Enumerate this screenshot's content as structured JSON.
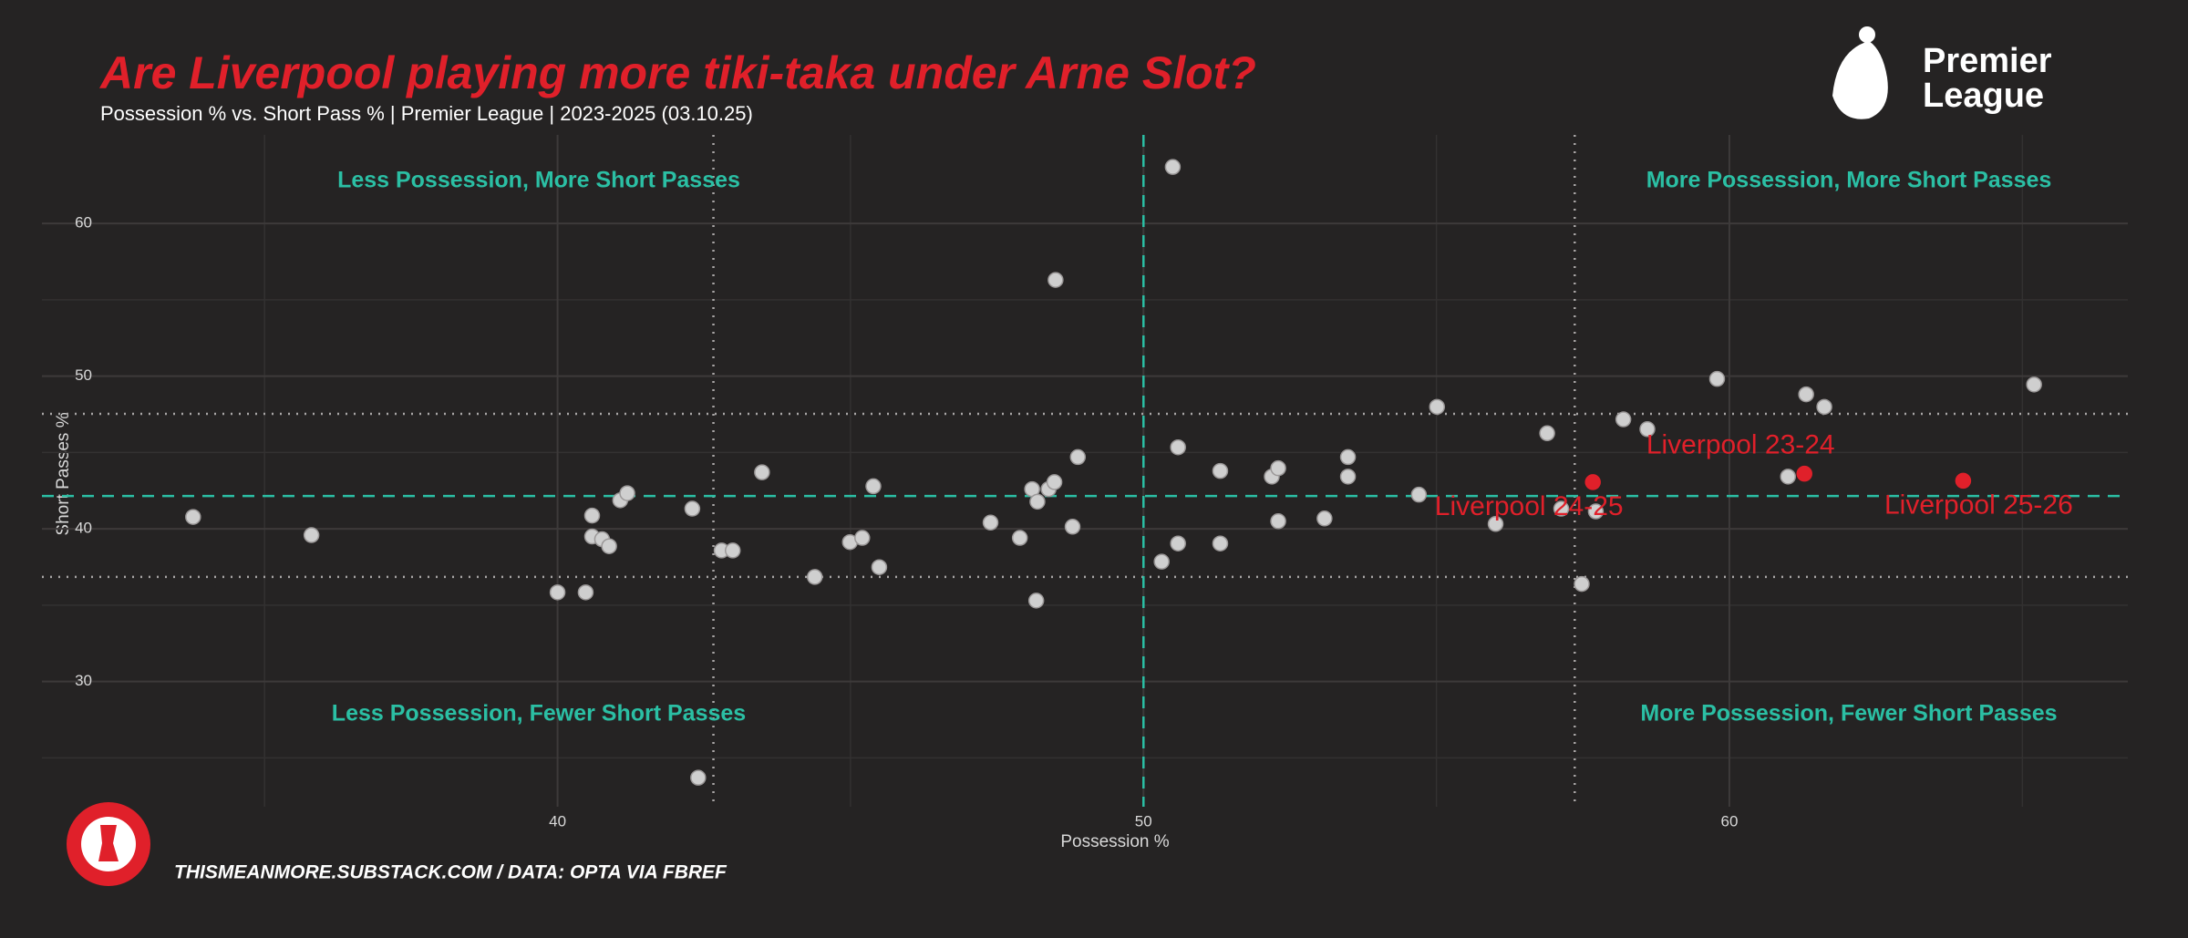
{
  "chart_data": {
    "type": "scatter",
    "title": "Are Liverpool playing more tiki-taka under Arne Slot?",
    "subtitle": "Possession % vs. Short Pass % | Premier League | 2023-2025 (03.10.25)",
    "x_label": "Possession %",
    "y_label": "Short Passes %",
    "xlim": [
      31.2,
      66.8
    ],
    "ylim": [
      21.8,
      65.8
    ],
    "xticks": [
      40,
      50,
      60
    ],
    "yticks": [
      30,
      40,
      50,
      60
    ],
    "x_minor_grid": [
      35,
      45,
      55,
      65
    ],
    "y_minor_grid": [
      25,
      35,
      45,
      55
    ],
    "grid": true,
    "quadrant_labels": [
      "Less Possession, More Short Passes",
      "More Possession, More Short Passes",
      "Less Possession, Fewer Short Passes",
      "More Possession, Fewer Short Passes"
    ],
    "median_x": 50,
    "median_y": 42.15,
    "dotted_x": [
      42.66,
      57.36
    ],
    "dotted_y": [
      47.53,
      36.85
    ],
    "series": [
      {
        "color": "#cfcfcf",
        "x": [
          33.78,
          35.8,
          40.0,
          40.48,
          40.59,
          40.59,
          40.76,
          40.88,
          41.07,
          41.19,
          42.3,
          42.4,
          42.8,
          42.99,
          43.49,
          44.39,
          44.99,
          45.2,
          45.39,
          45.49,
          47.39,
          47.89,
          48.1,
          48.19,
          48.17,
          48.38,
          48.48,
          48.5,
          48.79,
          48.88,
          50.31,
          50.5,
          50.59,
          50.59,
          51.31,
          51.31,
          52.19,
          52.3,
          52.3,
          53.09,
          53.49,
          53.49,
          54.7,
          55.01,
          56.01,
          56.89,
          57.13,
          57.48,
          57.72,
          58.19,
          58.6,
          59.79,
          61.0,
          61.31,
          61.62,
          65.2
        ],
        "values": [
          40.78,
          39.59,
          35.84,
          35.84,
          40.87,
          39.5,
          39.32,
          38.86,
          41.87,
          42.33,
          41.32,
          23.7,
          38.58,
          38.58,
          43.7,
          36.85,
          39.13,
          39.41,
          42.79,
          37.49,
          40.41,
          39.41,
          42.6,
          41.78,
          35.3,
          42.6,
          43.06,
          56.3,
          40.14,
          44.7,
          37.85,
          63.7,
          45.34,
          39.04,
          43.79,
          39.04,
          43.42,
          43.97,
          40.5,
          40.68,
          44.7,
          43.42,
          42.24,
          47.99,
          40.32,
          46.26,
          41.32,
          36.39,
          41.14,
          47.17,
          46.53,
          49.82,
          43.42,
          48.81,
          47.99,
          49.45
        ]
      },
      {
        "color": "#e0202a",
        "x": [
          61.28,
          57.67,
          63.99
        ],
        "values": [
          43.61,
          43.06,
          43.15
        ],
        "point_labels": [
          "Liverpool 23-24",
          "Liverpool 24-25",
          "Liverpool 25-26"
        ]
      }
    ],
    "footer": "THISMEANMORE.SUBSTACK.COM / DATA: OPTA VIA FBREF",
    "logo_text": [
      "Premier",
      "League"
    ]
  }
}
